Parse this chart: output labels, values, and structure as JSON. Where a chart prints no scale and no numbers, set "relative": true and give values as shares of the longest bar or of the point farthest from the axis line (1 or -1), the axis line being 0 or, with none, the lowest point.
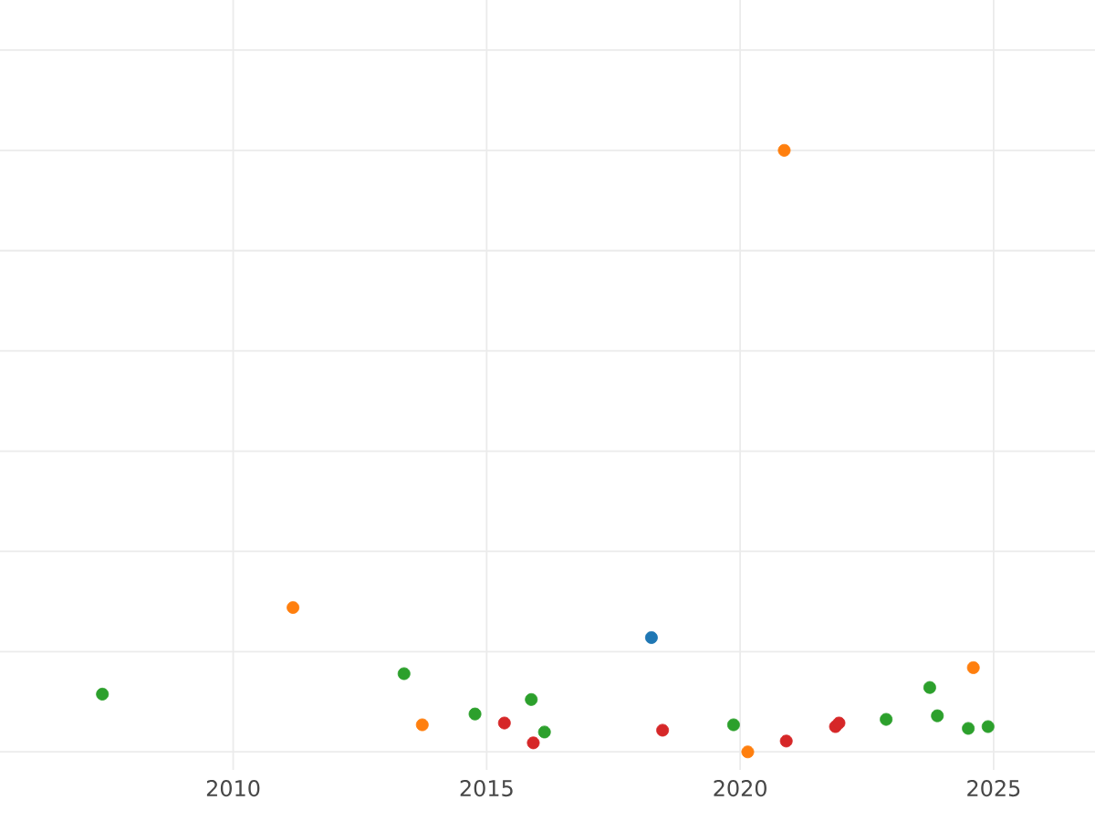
{
  "chart_data": {
    "type": "scatter",
    "relative": true,
    "grid": true,
    "marker": "circle",
    "xlim": [
      2005.4,
      2027
    ],
    "xticks": [
      2010,
      2015,
      2020,
      2025
    ],
    "series": [
      {
        "color": "#1f77b4",
        "x": [
          2018.25
        ],
        "values": [
          0.19
        ]
      },
      {
        "color": "#ff7f0e",
        "x": [
          2011.18,
          2013.73,
          2020.87,
          2020.15,
          2024.6
        ],
        "values": [
          0.24,
          0.045,
          1,
          0,
          0.14
        ]
      },
      {
        "color": "#2ca02c",
        "x": [
          2007.42,
          2013.37,
          2014.77,
          2015.88,
          2016.14,
          2019.87,
          2022.88,
          2023.74,
          2023.89,
          2024.5,
          2024.89
        ],
        "values": [
          0.096,
          0.13,
          0.063,
          0.087,
          0.033,
          0.045,
          0.054,
          0.107,
          0.06,
          0.039,
          0.042
        ]
      },
      {
        "color": "#d62728",
        "x": [
          2015.35,
          2015.92,
          2018.47,
          2020.91,
          2021.88,
          2021.95
        ],
        "values": [
          0.048,
          0.015,
          0.036,
          0.018,
          0.042,
          0.048
        ]
      }
    ]
  }
}
